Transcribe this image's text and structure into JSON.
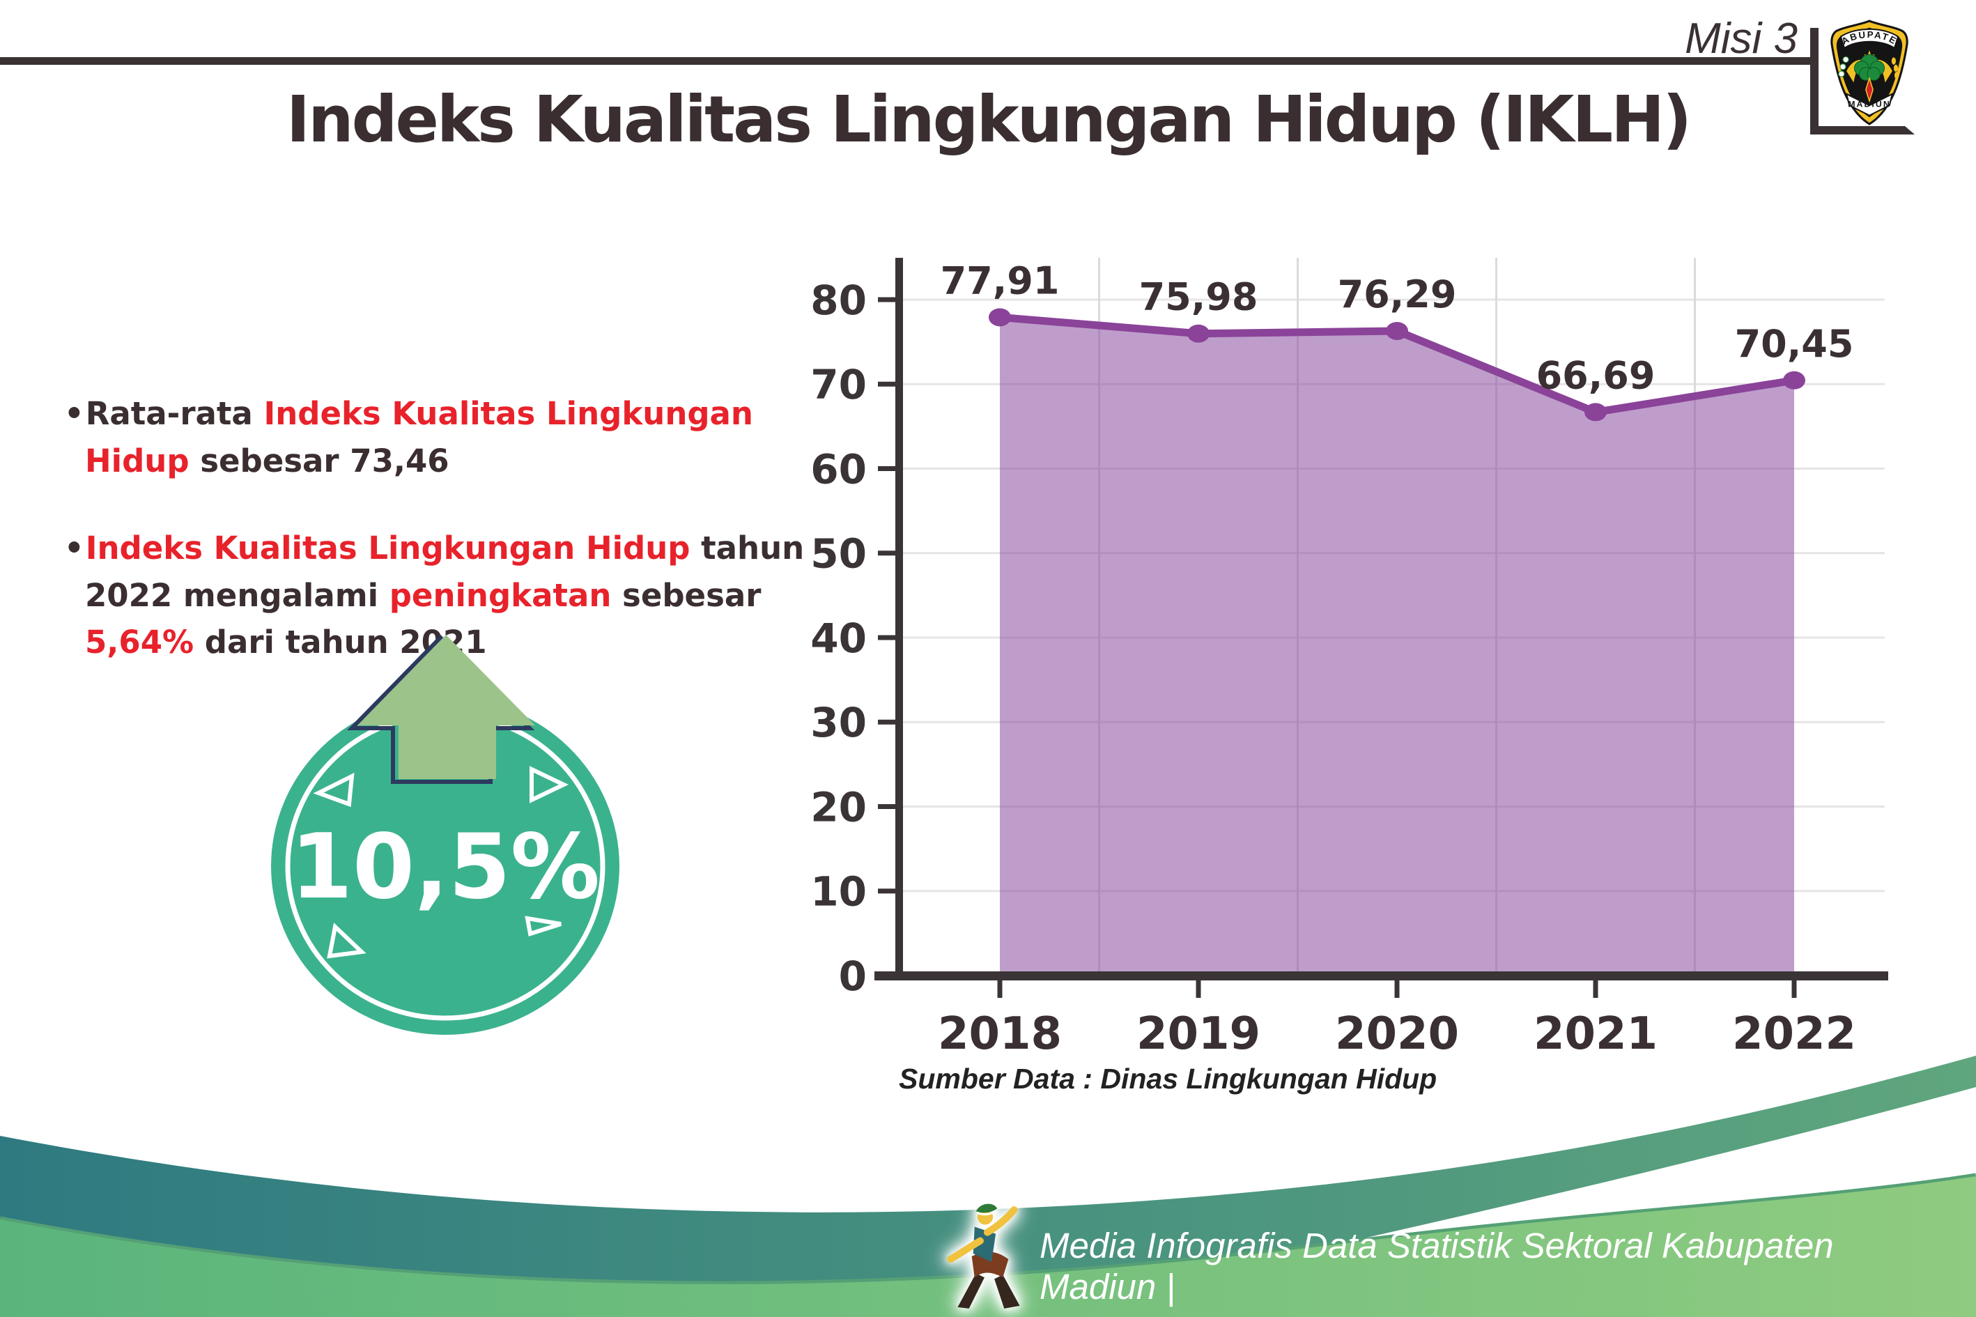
{
  "header": {
    "misi_label": "Misi 3",
    "title": "Indeks Kualitas Lingkungan Hidup (IKLH)",
    "logo": {
      "top_text": "KABUPATEN",
      "bottom_text": "MADIUN"
    }
  },
  "bullets": [
    {
      "segments": [
        {
          "text": "Rata-rata ",
          "color": "dark"
        },
        {
          "text": "Indeks Kualitas Lingkungan Hidup",
          "color": "red"
        },
        {
          "text": " sebesar 73,46",
          "color": "dark"
        }
      ]
    },
    {
      "segments": [
        {
          "text": "Indeks Kualitas Lingkungan Hidup",
          "color": "red"
        },
        {
          "text": " tahun 2022 mengalami ",
          "color": "dark"
        },
        {
          "text": "peningkatan",
          "color": "red"
        },
        {
          "text": " sebesar ",
          "color": "dark"
        },
        {
          "text": "5,64%",
          "color": "red"
        },
        {
          "text": " dari tahun 2021",
          "color": "dark"
        }
      ]
    }
  ],
  "badge": {
    "value": "10,5%"
  },
  "chart_data": {
    "type": "area",
    "categories": [
      "2018",
      "2019",
      "2020",
      "2021",
      "2022"
    ],
    "values": [
      77.91,
      75.98,
      76.29,
      66.69,
      70.45
    ],
    "labels": [
      "77,91",
      "75,98",
      "76,29",
      "66,69",
      "70,45"
    ],
    "title": "Indeks Kualitas Lingkungan Hidup (IKLH)",
    "xlabel": "",
    "ylabel": "",
    "ylim": [
      0,
      85
    ],
    "yticks": [
      0,
      10,
      20,
      30,
      40,
      50,
      60,
      70,
      80
    ],
    "grid": true,
    "legend": "none",
    "source": "Sumber Data : Dinas Lingkungan Hidup",
    "colors": {
      "line": "#8a4399",
      "marker": "#8a4399",
      "fill": "rgba(137,77,159,0.55)",
      "axis": "#3a3436",
      "gridline": "#e6e4e5"
    }
  },
  "colors": {
    "accent_red": "#e8222b",
    "badge_teal": "#3bb28e",
    "arrow_green": "#9cc389",
    "arrow_outline": "#2c3a5f",
    "footer_dark_left": "#2e7a80",
    "footer_dark_right": "#5fa67e",
    "footer_light_left": "#5ab57c",
    "footer_light_right": "#8fcb80"
  },
  "footer": {
    "credit": "Media Infografis Data Statistik Sektoral Kabupaten Madiun |"
  }
}
